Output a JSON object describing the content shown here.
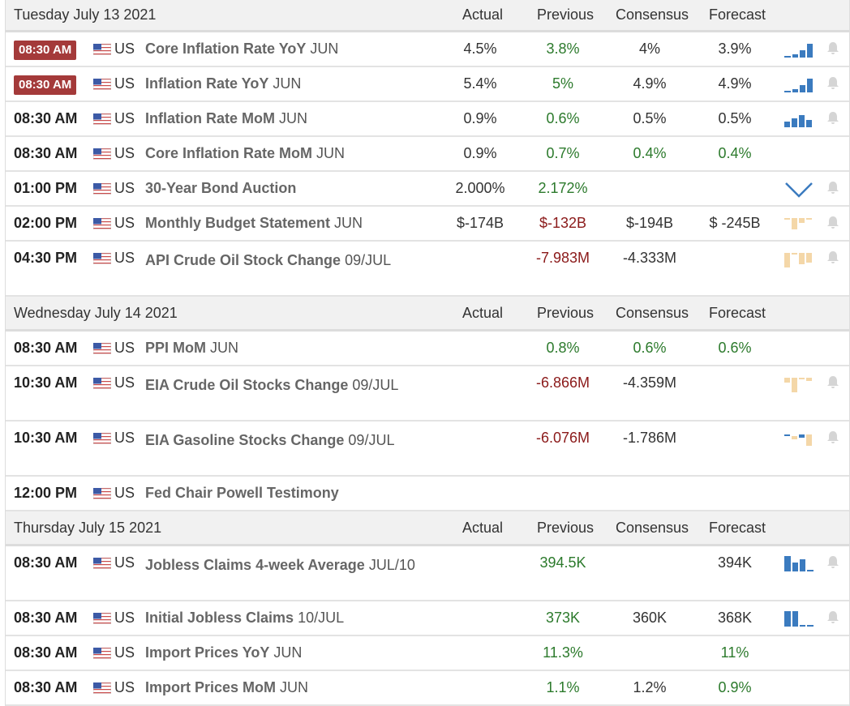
{
  "columns": {
    "actual": "Actual",
    "previous": "Previous",
    "consensus": "Consensus",
    "forecast": "Forecast"
  },
  "colors": {
    "badge_red": "#a43a3a",
    "positive": "#2c7a2c",
    "negative": "#8b1a1a",
    "chart_blue": "#3b7bbf",
    "chart_tan": "#f4d7a8"
  },
  "days": [
    {
      "date": "Tuesday July 13 2021",
      "events": [
        {
          "time": "08:30 AM",
          "highlight": true,
          "country": "US",
          "name": "Core Inflation Rate YoY",
          "ref": "JUN",
          "actual": "4.5%",
          "previous": "3.8%",
          "consensus": "4%",
          "forecast": "3.9%",
          "chart": "blue-rising",
          "bell": true
        },
        {
          "time": "08:30 AM",
          "highlight": true,
          "country": "US",
          "name": "Inflation Rate YoY",
          "ref": "JUN",
          "actual": "5.4%",
          "previous": "5%",
          "consensus": "4.9%",
          "forecast": "4.9%",
          "chart": "blue-rising",
          "bell": true
        },
        {
          "time": "08:30 AM",
          "highlight": false,
          "country": "US",
          "name": "Inflation Rate MoM",
          "ref": "JUN",
          "actual": "0.9%",
          "previous": "0.6%",
          "consensus": "0.5%",
          "forecast": "0.5%",
          "chart": "blue-step",
          "bell": true
        },
        {
          "time": "08:30 AM",
          "highlight": false,
          "country": "US",
          "name": "Core Inflation Rate MoM",
          "ref": "JUN",
          "actual": "0.9%",
          "previous": "0.7%",
          "consensus": "0.4%",
          "forecast": "0.4%",
          "chart": "",
          "bell": false
        },
        {
          "time": "01:00 PM",
          "highlight": false,
          "country": "US",
          "name": "30-Year Bond Auction",
          "ref": "",
          "actual": "2.000%",
          "previous": "2.172%",
          "consensus": "",
          "forecast": "",
          "chart": "blue-v",
          "bell": true
        },
        {
          "time": "02:00 PM",
          "highlight": false,
          "country": "US",
          "name": "Monthly Budget Statement",
          "ref": "JUN",
          "actual": "$-174B",
          "previous": "$-132B",
          "consensus": "$-194B",
          "forecast": "$ -245B",
          "chart": "tan-down",
          "bell": true
        },
        {
          "time": "04:30 PM",
          "highlight": false,
          "country": "US",
          "name": "API Crude Oil Stock Change",
          "ref": "09/JUL",
          "actual": "",
          "previous": "-7.983M",
          "consensus": "-4.333M",
          "forecast": "",
          "chart": "tan-down2",
          "bell": true
        }
      ]
    },
    {
      "date": "Wednesday July 14 2021",
      "events": [
        {
          "time": "08:30 AM",
          "highlight": false,
          "country": "US",
          "name": "PPI MoM",
          "ref": "JUN",
          "actual": "",
          "previous": "0.8%",
          "consensus": "0.6%",
          "forecast": "0.6%",
          "chart": "",
          "bell": false
        },
        {
          "time": "10:30 AM",
          "highlight": false,
          "country": "US",
          "name": "EIA Crude Oil Stocks Change",
          "ref": "09/JUL",
          "actual": "",
          "previous": "-6.866M",
          "consensus": "-4.359M",
          "forecast": "",
          "chart": "tan-down3",
          "bell": true
        },
        {
          "time": "10:30 AM",
          "highlight": false,
          "country": "US",
          "name": "EIA Gasoline Stocks Change",
          "ref": "09/JUL",
          "actual": "",
          "previous": "-6.076M",
          "consensus": "-1.786M",
          "forecast": "",
          "chart": "mixed",
          "bell": true
        },
        {
          "time": "12:00 PM",
          "highlight": false,
          "country": "US",
          "name": "Fed Chair Powell Testimony",
          "ref": "",
          "actual": "",
          "previous": "",
          "consensus": "",
          "forecast": "",
          "chart": "",
          "bell": false
        }
      ]
    },
    {
      "date": "Thursday July 15 2021",
      "events": [
        {
          "time": "08:30 AM",
          "highlight": false,
          "country": "US",
          "name": "Jobless Claims 4-week Average",
          "ref": "JUL/10",
          "actual": "",
          "previous": "394.5K",
          "consensus": "",
          "forecast": "394K",
          "chart": "blue-fall",
          "bell": true
        },
        {
          "time": "08:30 AM",
          "highlight": false,
          "country": "US",
          "name": "Initial Jobless Claims",
          "ref": "10/JUL",
          "actual": "",
          "previous": "373K",
          "consensus": "360K",
          "forecast": "368K",
          "chart": "blue-fall2",
          "bell": true
        },
        {
          "time": "08:30 AM",
          "highlight": false,
          "country": "US",
          "name": "Import Prices YoY",
          "ref": "JUN",
          "actual": "",
          "previous": "11.3%",
          "consensus": "",
          "forecast": "11%",
          "chart": "",
          "bell": false
        },
        {
          "time": "08:30 AM",
          "highlight": false,
          "country": "US",
          "name": "Import Prices MoM",
          "ref": "JUN",
          "actual": "",
          "previous": "1.1%",
          "consensus": "1.2%",
          "forecast": "0.9%",
          "chart": "",
          "bell": false
        }
      ]
    }
  ]
}
